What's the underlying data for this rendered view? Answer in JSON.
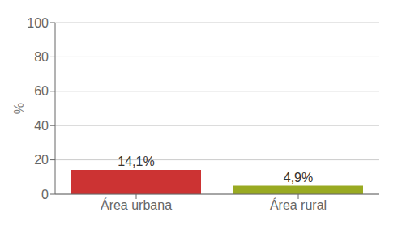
{
  "chart_data": {
    "type": "bar",
    "categories": [
      "Área urbana",
      "Área rural"
    ],
    "values": [
      14.1,
      4.9
    ],
    "value_labels": [
      "14,1%",
      "4,9%"
    ],
    "colors": [
      "#cc3333",
      "#99aa22"
    ],
    "ylabel": "%",
    "ylim": [
      0,
      100
    ],
    "yticks": [
      0,
      20,
      40,
      60,
      80,
      100
    ],
    "grid": true,
    "data_labels": true
  }
}
